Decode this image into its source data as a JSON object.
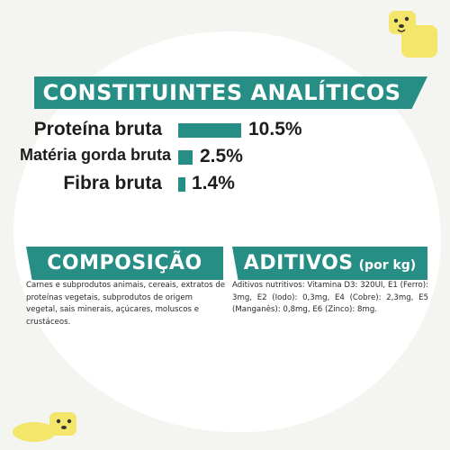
{
  "title": "CONSTITUINTES ANALÍTICOS",
  "nutrients": [
    {
      "label": "Proteína bruta",
      "value": "10.5%",
      "amount": 10.5
    },
    {
      "label": "Matéria gorda bruta",
      "value": "2.5%",
      "amount": 2.5
    },
    {
      "label": "Fibra bruta",
      "value": "1.4%",
      "amount": 1.4
    }
  ],
  "composition": {
    "heading": "COMPOSIÇÃO",
    "text": "Carnes e subprodutos animais, cereais, extratos de proteínas vegetais, subprodutos de origem vegetal, sais minerais, açúcares, moluscos e crustáceos."
  },
  "additives": {
    "heading": "ADITIVOS",
    "heading_suffix": "(por kg)",
    "text": "Aditivos nutritivos: Vitamina D3: 320UI, E1 (Ferro): 3mg, E2 (Iodo): 0,3mg, E4 (Cobre): 2,3mg, E5 (Manganês): 0,8mg, E6 (Zinco): 8mg."
  },
  "colors": {
    "accent": "#268e84",
    "mascot": "#f3e66a"
  },
  "icons": [
    "dog-mascot-icon"
  ]
}
